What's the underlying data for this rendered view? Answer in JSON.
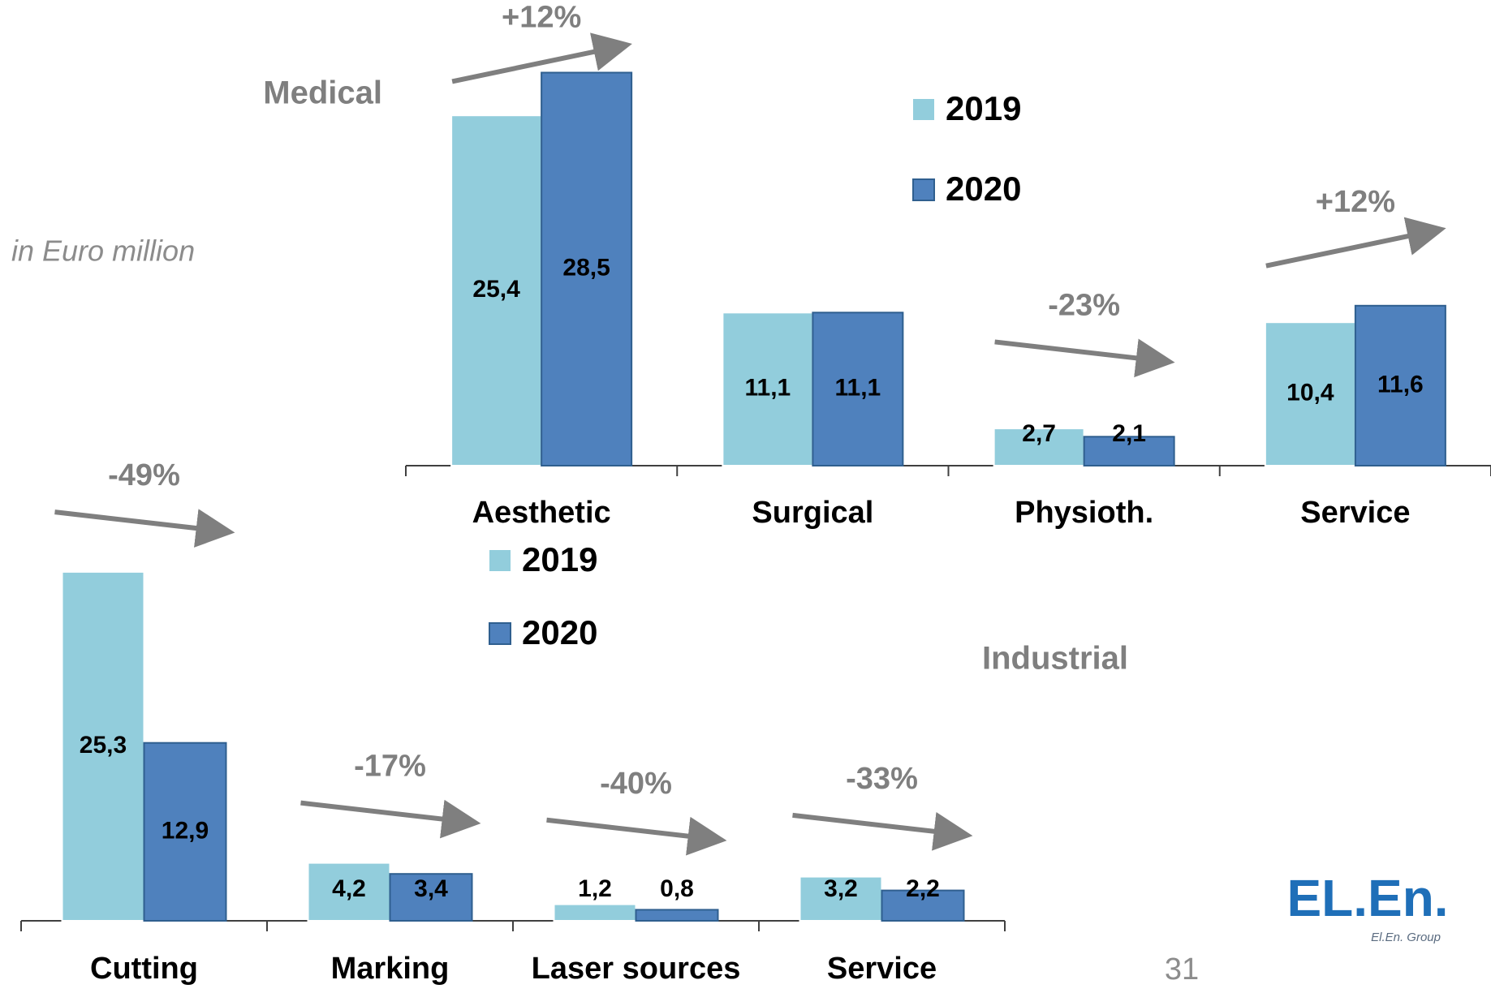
{
  "note": "in Euro million",
  "page_number": "31",
  "logo": {
    "text": "EL.En.",
    "caption": "El.En. Group"
  },
  "chart_data": [
    {
      "type": "bar",
      "title": "Medical",
      "categories": [
        "Aesthetic",
        "Surgical",
        "Physioth.",
        "Service"
      ],
      "series": [
        {
          "name": "2019",
          "color": "#92cddc",
          "values": [
            25.4,
            11.1,
            2.7,
            10.4
          ],
          "value_labels": [
            "25,4",
            "11,1",
            "2,7",
            "10,4"
          ]
        },
        {
          "name": "2020",
          "color": "#4f81bd",
          "values": [
            28.5,
            11.1,
            2.1,
            11.6
          ],
          "value_labels": [
            "28,5",
            "11,1",
            "2,1",
            "11,6"
          ]
        }
      ],
      "annotations": [
        "+12%",
        null,
        "-23%",
        "+12%"
      ],
      "ylim": [
        0,
        30
      ]
    },
    {
      "type": "bar",
      "title": "Industrial",
      "categories": [
        "Cutting",
        "Marking",
        "Laser sources",
        "Service"
      ],
      "series": [
        {
          "name": "2019",
          "color": "#92cddc",
          "values": [
            25.3,
            4.2,
            1.2,
            3.2
          ],
          "value_labels": [
            "25,3",
            "4,2",
            "1,2",
            "3,2"
          ]
        },
        {
          "name": "2020",
          "color": "#4f81bd",
          "values": [
            12.9,
            3.4,
            0.8,
            2.2
          ],
          "value_labels": [
            "12,9",
            "3,4",
            "0,8",
            "2,2"
          ]
        }
      ],
      "annotations": [
        "-49%",
        "-17%",
        "-40%",
        "-33%"
      ],
      "ylim": [
        0,
        30
      ]
    }
  ]
}
